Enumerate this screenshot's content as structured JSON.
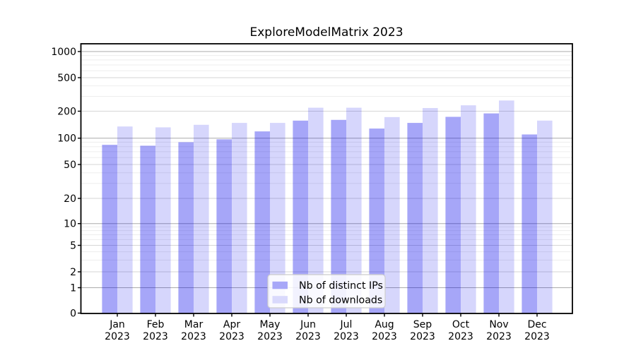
{
  "chart_data": {
    "type": "bar",
    "title": "ExploreModelMatrix 2023",
    "categories": [
      "Jan",
      "Feb",
      "Mar",
      "Apr",
      "May",
      "Jun",
      "Jul",
      "Aug",
      "Sep",
      "Oct",
      "Nov",
      "Dec"
    ],
    "category_year": "2023",
    "y_scale": "symlog",
    "y_ticks": [
      0,
      1,
      2,
      5,
      10,
      20,
      50,
      100,
      200,
      500,
      1000
    ],
    "ylim": [
      0,
      1300
    ],
    "grid": true,
    "legend_position": "lower center",
    "series": [
      {
        "name": "Nb of distinct IPs",
        "color": "#a7a7f8",
        "values": [
          84,
          82,
          90,
          97,
          119,
          157,
          160,
          128,
          148,
          173,
          189,
          110
        ]
      },
      {
        "name": "Nb of downloads",
        "color": "#d9d9fc",
        "values": [
          135,
          132,
          141,
          148,
          148,
          220,
          220,
          172,
          218,
          235,
          268,
          157
        ]
      }
    ]
  }
}
